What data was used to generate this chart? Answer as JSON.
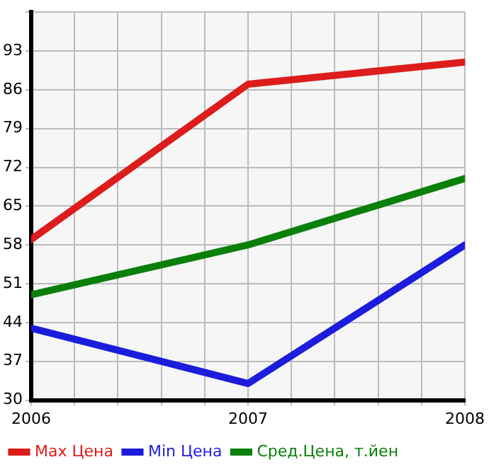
{
  "chart_data": {
    "type": "line",
    "x": [
      2006,
      2007,
      2008
    ],
    "series": [
      {
        "name": "Max Цена",
        "color": "#dd1c1c",
        "values": [
          59,
          87,
          91
        ]
      },
      {
        "name": "Min Цена",
        "color": "#1c1cdd",
        "values": [
          43,
          33,
          58
        ]
      },
      {
        "name": "Сред.Цена, т.йен",
        "color": "#0a800a",
        "values": [
          49,
          58,
          70
        ]
      }
    ],
    "xlim": [
      2006,
      2008
    ],
    "xticks": [
      2006,
      {
        "value": 2006.2,
        "label": null
      },
      {
        "value": 2006.4,
        "label": null
      },
      {
        "value": 2006.6,
        "label": null
      },
      {
        "value": 2006.8,
        "label": null
      },
      2007,
      {
        "value": 2007.2,
        "label": null
      },
      {
        "value": 2007.4,
        "label": null
      },
      {
        "value": 2007.6,
        "label": null
      },
      {
        "value": 2007.8,
        "label": null
      },
      2008
    ],
    "ylim": [
      30,
      100
    ],
    "yticks": [
      30,
      37,
      44,
      51,
      58,
      65,
      72,
      79,
      86,
      93,
      {
        "value": 100,
        "label": null
      }
    ],
    "grid": true,
    "legend": "bottom",
    "marker": "none",
    "line_style": "solid"
  }
}
